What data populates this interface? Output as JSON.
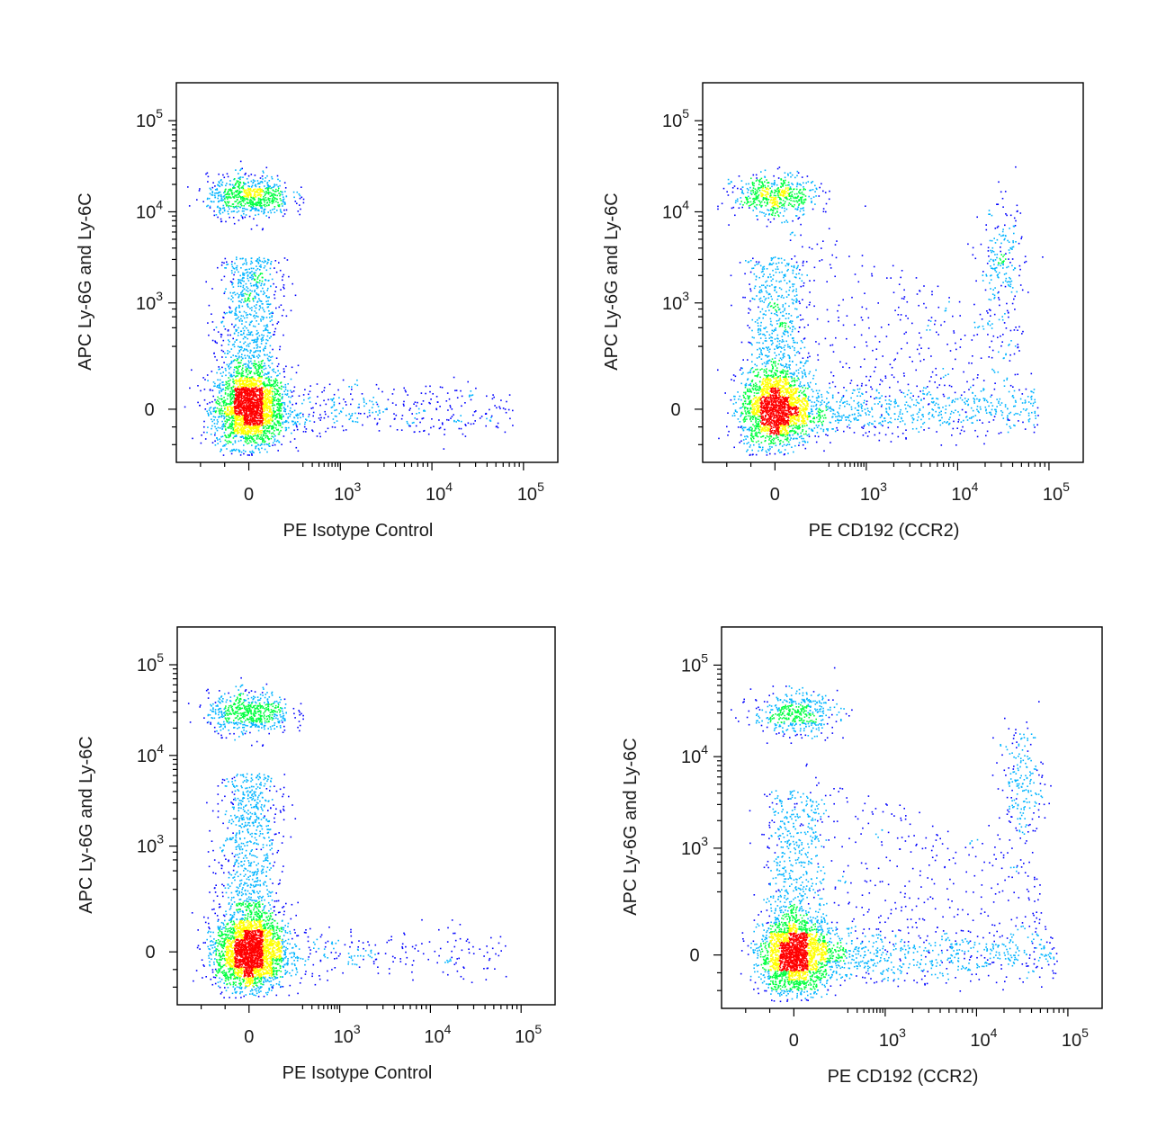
{
  "chart_data": [
    {
      "type": "scatter",
      "panel": "top-left",
      "xlabel": "PE Isotype Control",
      "ylabel": "APC Ly-6G and Ly-6C",
      "x_scale": "biexponential",
      "y_scale": "biexponential",
      "xlim": [
        -300,
        150000
      ],
      "ylim": [
        -300,
        250000
      ],
      "x_ticks": [
        {
          "base": "0",
          "exp": ""
        },
        {
          "base": "10",
          "exp": "3"
        },
        {
          "base": "10",
          "exp": "4"
        },
        {
          "base": "10",
          "exp": "5"
        }
      ],
      "y_ticks": [
        {
          "base": "0",
          "exp": ""
        },
        {
          "base": "10",
          "exp": "3"
        },
        {
          "base": "10",
          "exp": "4"
        },
        {
          "base": "10",
          "exp": "5"
        }
      ],
      "populations": [
        {
          "name_hint": "main",
          "x_center": 0,
          "y_center": 0,
          "weight": 0.55
        },
        {
          "name_hint": "high-y",
          "x_center": 0,
          "y_center": 15000,
          "weight": 0.16
        },
        {
          "name_hint": "stem",
          "x_center": 0,
          "y_center": 1500,
          "weight": 0.2
        },
        {
          "name_hint": "x-tail",
          "x_center": 3000,
          "y_center": 0,
          "weight": 0.09
        }
      ]
    },
    {
      "type": "scatter",
      "panel": "top-right",
      "xlabel": "PE CD192 (CCR2)",
      "ylabel": "APC Ly-6G and Ly-6C",
      "x_scale": "biexponential",
      "y_scale": "biexponential",
      "xlim": [
        -300,
        150000
      ],
      "ylim": [
        -300,
        250000
      ],
      "x_ticks": [
        {
          "base": "0",
          "exp": ""
        },
        {
          "base": "10",
          "exp": "3"
        },
        {
          "base": "10",
          "exp": "4"
        },
        {
          "base": "10",
          "exp": "5"
        }
      ],
      "y_ticks": [
        {
          "base": "0",
          "exp": ""
        },
        {
          "base": "10",
          "exp": "3"
        },
        {
          "base": "10",
          "exp": "4"
        },
        {
          "base": "10",
          "exp": "5"
        }
      ],
      "populations": [
        {
          "name_hint": "main",
          "x_center": 0,
          "y_center": 0,
          "weight": 0.45
        },
        {
          "name_hint": "high-y",
          "x_center": 0,
          "y_center": 15000,
          "weight": 0.13
        },
        {
          "name_hint": "stem",
          "x_center": 0,
          "y_center": 1500,
          "weight": 0.14
        },
        {
          "name_hint": "x-tail",
          "x_center": 3000,
          "y_center": 0,
          "weight": 0.16
        },
        {
          "name_hint": "double-positive",
          "x_center": 30000,
          "y_center": 2500,
          "weight": 0.05
        },
        {
          "name_hint": "diffuse",
          "x_center": 3000,
          "y_center": 800,
          "weight": 0.07
        }
      ]
    },
    {
      "type": "scatter",
      "panel": "bottom-left",
      "xlabel": "PE Isotype Control",
      "ylabel": "APC Ly-6G and Ly-6C",
      "x_scale": "biexponential",
      "y_scale": "biexponential",
      "xlim": [
        -300,
        150000
      ],
      "ylim": [
        -300,
        250000
      ],
      "x_ticks": [
        {
          "base": "0",
          "exp": ""
        },
        {
          "base": "10",
          "exp": "3"
        },
        {
          "base": "10",
          "exp": "4"
        },
        {
          "base": "10",
          "exp": "5"
        }
      ],
      "y_ticks": [
        {
          "base": "0",
          "exp": ""
        },
        {
          "base": "10",
          "exp": "3"
        },
        {
          "base": "10",
          "exp": "4"
        },
        {
          "base": "10",
          "exp": "5"
        }
      ],
      "populations": [
        {
          "name_hint": "main",
          "x_center": 0,
          "y_center": 0,
          "weight": 0.6
        },
        {
          "name_hint": "high-y",
          "x_center": 0,
          "y_center": 30000,
          "weight": 0.14
        },
        {
          "name_hint": "stem",
          "x_center": 0,
          "y_center": 3000,
          "weight": 0.2
        },
        {
          "name_hint": "x-tail",
          "x_center": 3000,
          "y_center": 0,
          "weight": 0.06
        }
      ]
    },
    {
      "type": "scatter",
      "panel": "bottom-right",
      "xlabel": "PE CD192 (CCR2)",
      "ylabel": "APC Ly-6G and Ly-6C",
      "x_scale": "biexponential",
      "y_scale": "biexponential",
      "xlim": [
        -300,
        150000
      ],
      "ylim": [
        -300,
        250000
      ],
      "x_ticks": [
        {
          "base": "0",
          "exp": ""
        },
        {
          "base": "10",
          "exp": "3"
        },
        {
          "base": "10",
          "exp": "4"
        },
        {
          "base": "10",
          "exp": "5"
        }
      ],
      "y_ticks": [
        {
          "base": "0",
          "exp": ""
        },
        {
          "base": "10",
          "exp": "3"
        },
        {
          "base": "10",
          "exp": "4"
        },
        {
          "base": "10",
          "exp": "5"
        }
      ],
      "populations": [
        {
          "name_hint": "main",
          "x_center": 0,
          "y_center": 0,
          "weight": 0.5
        },
        {
          "name_hint": "high-y",
          "x_center": 0,
          "y_center": 30000,
          "weight": 0.1
        },
        {
          "name_hint": "stem",
          "x_center": 0,
          "y_center": 2000,
          "weight": 0.12
        },
        {
          "name_hint": "x-tail",
          "x_center": 3000,
          "y_center": 0,
          "weight": 0.16
        },
        {
          "name_hint": "double-positive",
          "x_center": 30000,
          "y_center": 5000,
          "weight": 0.05
        },
        {
          "name_hint": "diffuse",
          "x_center": 3000,
          "y_center": 1500,
          "weight": 0.07
        }
      ]
    }
  ],
  "colors": {
    "low_density": "#0000ff",
    "mid_density": "#00b4ff",
    "mid_high_density": "#00ff40",
    "high_density": "#ffff00",
    "peak_density": "#ff0000"
  }
}
